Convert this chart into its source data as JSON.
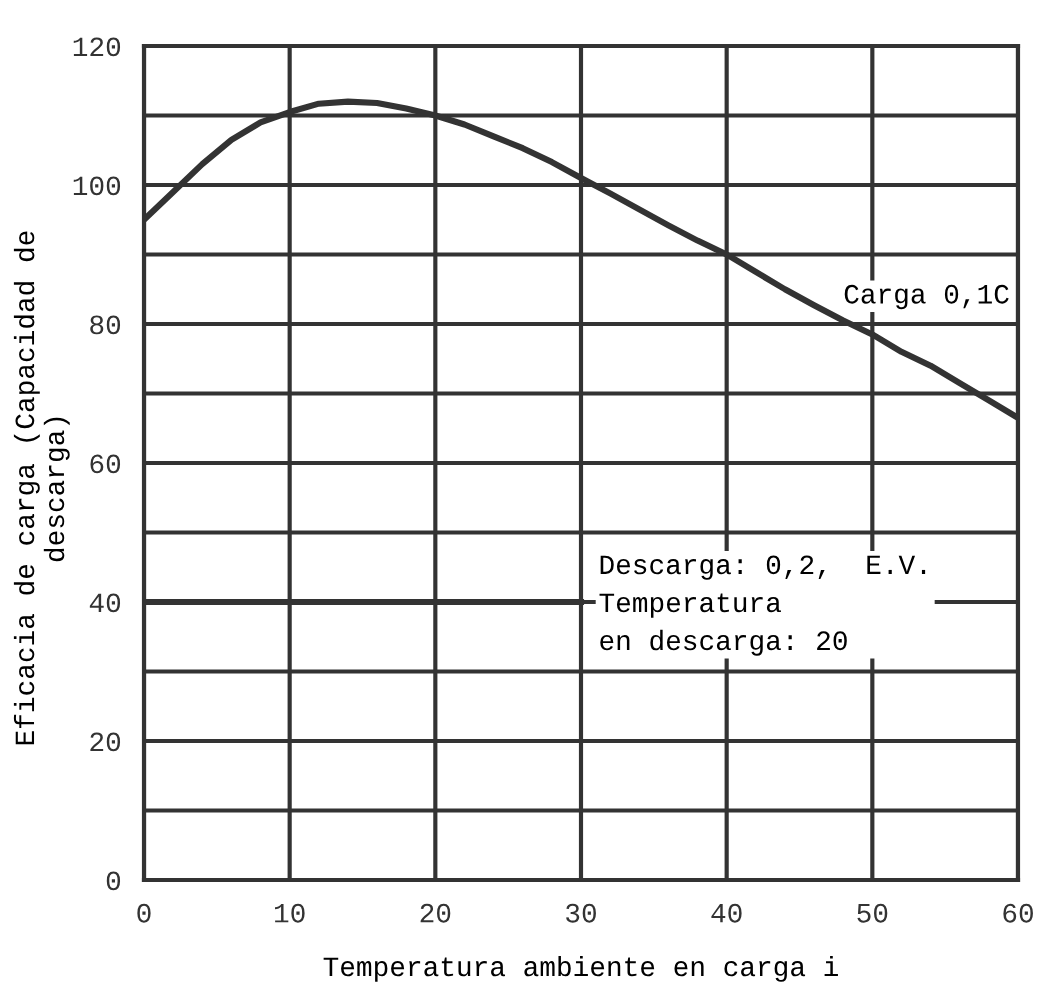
{
  "chart_data": {
    "type": "line",
    "xlabel": "Temperatura ambiente en carga i",
    "ylabel": "Eficacia de carga (Capacidad de\ndescarga)",
    "xlim": [
      0,
      60
    ],
    "xticks": [
      0,
      10,
      20,
      30,
      40,
      50,
      60
    ],
    "ylim": [
      0,
      120
    ],
    "yticks": [
      0,
      {
        "value": 10,
        "label": null
      },
      20,
      {
        "value": 30,
        "label": null
      },
      40,
      {
        "value": 50,
        "label": null
      },
      60,
      {
        "value": 70,
        "label": null
      },
      80,
      {
        "value": 90,
        "label": null
      },
      100,
      {
        "value": 110,
        "label": null
      },
      120
    ],
    "grid": true,
    "legend": false,
    "marker": "none",
    "line_style": "solid",
    "series": [
      {
        "name": "Carga 0,1C",
        "color": "#333333",
        "x": [
          0,
          2,
          4,
          6,
          8,
          10,
          12,
          14,
          16,
          18,
          20,
          22,
          24,
          26,
          28,
          30,
          32,
          34,
          36,
          38,
          40,
          42,
          44,
          46,
          48,
          50,
          52,
          54,
          56,
          58,
          60
        ],
        "values": [
          95,
          99,
          103,
          106.5,
          109,
          110.5,
          111.7,
          112,
          111.8,
          111,
          110,
          108.7,
          107,
          105.3,
          103.3,
          101,
          98.8,
          96.5,
          94.2,
          92,
          90,
          87.5,
          85,
          82.7,
          80.5,
          78.5,
          76,
          74,
          71.5,
          69,
          66.5
        ]
      },
      {
        "name": "Descarga: 0,2,  E.V.\nTemperatura\nen descarga: 20",
        "color": "#333333",
        "x": [
          0,
          30
        ],
        "values": [
          40,
          40
        ]
      }
    ]
  }
}
